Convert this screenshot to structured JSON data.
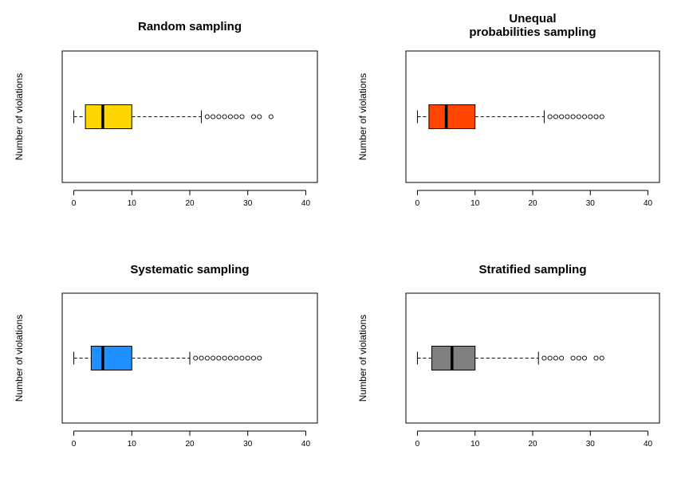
{
  "chart_data": [
    {
      "type": "boxplot",
      "orientation": "horizontal",
      "title": "Random sampling",
      "ylabel": "Number of violations",
      "xlim": [
        -2,
        42
      ],
      "xticks": [
        0,
        10,
        20,
        30,
        40
      ],
      "fill": "#FFD700",
      "stats": {
        "whisker_low": 0,
        "q1": 2,
        "median": 5,
        "q3": 10,
        "whisker_high": 22
      },
      "outliers": [
        23,
        24,
        25,
        26,
        27,
        28,
        29,
        31,
        32,
        34
      ]
    },
    {
      "type": "boxplot",
      "orientation": "horizontal",
      "title": "Unequal\nprobabilities sampling",
      "ylabel": "Number of violations",
      "xlim": [
        -2,
        42
      ],
      "xticks": [
        0,
        10,
        20,
        30,
        40
      ],
      "fill": "#FF4500",
      "stats": {
        "whisker_low": 0,
        "q1": 2,
        "median": 5,
        "q3": 10,
        "whisker_high": 22
      },
      "outliers": [
        23,
        24,
        25,
        26,
        27,
        28,
        29,
        30,
        31,
        32
      ]
    },
    {
      "type": "boxplot",
      "orientation": "horizontal",
      "title": "Systematic sampling",
      "ylabel": "Number of violations",
      "xlim": [
        -2,
        42
      ],
      "xticks": [
        0,
        10,
        20,
        30,
        40
      ],
      "fill": "#1E90FF",
      "stats": {
        "whisker_low": 0,
        "q1": 3,
        "median": 5,
        "q3": 10,
        "whisker_high": 20
      },
      "outliers": [
        21,
        22,
        23,
        24,
        25,
        26,
        27,
        28,
        29,
        30,
        31,
        32
      ]
    },
    {
      "type": "boxplot",
      "orientation": "horizontal",
      "title": "Stratified sampling",
      "ylabel": "Number of violations",
      "xlim": [
        -2,
        42
      ],
      "xticks": [
        0,
        10,
        20,
        30,
        40
      ],
      "fill": "#808080",
      "stats": {
        "whisker_low": 0,
        "q1": 2.5,
        "median": 6,
        "q3": 10,
        "whisker_high": 21
      },
      "outliers": [
        22,
        23,
        24,
        25,
        27,
        28,
        29,
        31,
        32
      ]
    }
  ]
}
